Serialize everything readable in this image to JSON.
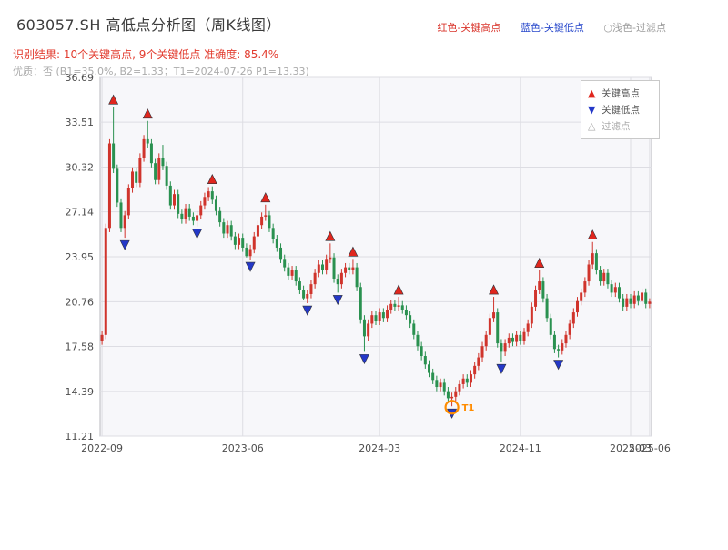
{
  "header": {
    "title": "603057.SH 高低点分析图（周K线图）",
    "legend_top": [
      {
        "label": "红色-关键高点",
        "color": "#d9342b"
      },
      {
        "label": "蓝色-关键低点",
        "color": "#2b4bcc"
      },
      {
        "label": "○浅色-过滤点",
        "color": "#9a9a9a"
      }
    ],
    "result_line": "识别结果: 10个关键高点, 9个关键低点   准确度: 85.4%",
    "quality_line": "优质：否 (B1=35.0%, B2=1.33；T1=2024-07-26 P1=13.33)"
  },
  "chart_data": {
    "type": "candlestick",
    "symbol": "603057.SH",
    "period": "weekly",
    "ylim": [
      11.21,
      36.69
    ],
    "y_ticks": [
      36.69,
      33.51,
      30.32,
      27.14,
      23.95,
      20.76,
      17.58,
      14.39,
      11.21
    ],
    "x_ticks": [
      {
        "index": 0,
        "label": "2022-09"
      },
      {
        "index": 37,
        "label": "2023-06"
      },
      {
        "index": 73,
        "label": "2024-03"
      },
      {
        "index": 110,
        "label": "2024-11"
      },
      {
        "index": 139,
        "label": "2025-03"
      },
      {
        "index": 144,
        "label": "2025-06"
      }
    ],
    "colors": {
      "up": "#d0342c",
      "down": "#2a9150",
      "key_high": "#e0261d",
      "key_low": "#2438c8",
      "t1": "#ff8c00",
      "grid": "#dddde3",
      "plot_bg": "#f7f7fa",
      "border": "#b9b9bf"
    },
    "legend": [
      {
        "label": "关键高点",
        "glyph": "▲",
        "color": "#e0261d"
      },
      {
        "label": "关键低点",
        "glyph": "▼",
        "color": "#2438c8"
      },
      {
        "label": "过滤点",
        "glyph": "△",
        "color": "#aaaaaa"
      }
    ],
    "key_highs": [
      {
        "i": 3,
        "v": 34.6
      },
      {
        "i": 12,
        "v": 33.6
      },
      {
        "i": 29,
        "v": 28.95
      },
      {
        "i": 43,
        "v": 27.65
      },
      {
        "i": 60,
        "v": 24.9
      },
      {
        "i": 66,
        "v": 23.8
      },
      {
        "i": 78,
        "v": 21.1
      },
      {
        "i": 103,
        "v": 21.1
      },
      {
        "i": 115,
        "v": 23.0
      },
      {
        "i": 129,
        "v": 25.0
      }
    ],
    "key_lows": [
      {
        "i": 6,
        "v": 25.3
      },
      {
        "i": 25,
        "v": 26.1
      },
      {
        "i": 39,
        "v": 23.75
      },
      {
        "i": 54,
        "v": 20.65
      },
      {
        "i": 62,
        "v": 21.4
      },
      {
        "i": 69,
        "v": 17.2
      },
      {
        "i": 92,
        "v": 13.33
      },
      {
        "i": 105,
        "v": 16.5
      },
      {
        "i": 120,
        "v": 16.8
      }
    ],
    "t1": {
      "i": 92,
      "v": 13.33,
      "label": "T1"
    },
    "candles": [
      [
        18.0,
        18.7,
        17.7,
        18.4
      ],
      [
        18.4,
        26.3,
        18.1,
        26.0
      ],
      [
        26.0,
        32.3,
        25.7,
        32.0
      ],
      [
        32.0,
        34.6,
        29.9,
        30.2
      ],
      [
        30.2,
        30.5,
        27.5,
        27.8
      ],
      [
        27.8,
        28.1,
        25.7,
        26.0
      ],
      [
        26.0,
        27.2,
        25.3,
        26.9
      ],
      [
        26.9,
        29.1,
        26.6,
        28.8
      ],
      [
        28.8,
        30.3,
        28.5,
        30.0
      ],
      [
        30.0,
        30.3,
        28.9,
        29.2
      ],
      [
        29.2,
        31.3,
        28.9,
        31.0
      ],
      [
        31.0,
        32.6,
        30.7,
        32.3
      ],
      [
        32.3,
        33.6,
        31.7,
        32.0
      ],
      [
        32.0,
        32.3,
        30.3,
        30.6
      ],
      [
        30.6,
        30.9,
        29.1,
        29.4
      ],
      [
        29.4,
        31.3,
        29.1,
        31.0
      ],
      [
        31.0,
        31.9,
        30.1,
        30.4
      ],
      [
        30.4,
        30.7,
        28.7,
        29.0
      ],
      [
        29.0,
        29.3,
        27.3,
        27.6
      ],
      [
        27.6,
        28.7,
        27.3,
        28.4
      ],
      [
        28.4,
        28.7,
        26.7,
        27.0
      ],
      [
        27.0,
        27.3,
        26.3,
        26.6
      ],
      [
        26.6,
        27.7,
        26.3,
        27.4
      ],
      [
        27.4,
        27.7,
        26.5,
        26.8
      ],
      [
        26.8,
        27.1,
        26.2,
        26.5
      ],
      [
        26.5,
        27.2,
        26.1,
        26.9
      ],
      [
        26.9,
        27.9,
        26.6,
        27.6
      ],
      [
        27.6,
        28.5,
        27.3,
        28.2
      ],
      [
        28.2,
        28.9,
        27.9,
        28.6
      ],
      [
        28.6,
        28.95,
        27.7,
        28.0
      ],
      [
        28.0,
        28.3,
        26.9,
        27.2
      ],
      [
        27.2,
        27.5,
        26.1,
        26.4
      ],
      [
        26.4,
        26.7,
        25.3,
        25.6
      ],
      [
        25.6,
        26.5,
        25.3,
        26.2
      ],
      [
        26.2,
        26.5,
        25.1,
        25.4
      ],
      [
        25.4,
        25.7,
        24.5,
        24.8
      ],
      [
        24.8,
        25.6,
        24.5,
        25.3
      ],
      [
        25.3,
        25.6,
        24.3,
        24.6
      ],
      [
        24.6,
        24.9,
        23.9,
        24.0
      ],
      [
        24.0,
        24.8,
        23.75,
        24.5
      ],
      [
        24.5,
        25.7,
        24.2,
        25.4
      ],
      [
        25.4,
        26.5,
        25.1,
        26.2
      ],
      [
        26.2,
        27.1,
        25.9,
        26.8
      ],
      [
        26.8,
        27.65,
        26.5,
        26.9
      ],
      [
        26.9,
        27.2,
        25.7,
        26.0
      ],
      [
        26.0,
        26.3,
        24.9,
        25.2
      ],
      [
        25.2,
        25.5,
        24.3,
        24.6
      ],
      [
        24.6,
        24.9,
        23.5,
        23.8
      ],
      [
        23.8,
        24.1,
        22.9,
        23.2
      ],
      [
        23.2,
        23.5,
        22.3,
        22.6
      ],
      [
        22.6,
        23.3,
        22.3,
        23.0
      ],
      [
        23.0,
        23.3,
        21.9,
        22.2
      ],
      [
        22.2,
        22.5,
        21.3,
        21.6
      ],
      [
        21.6,
        21.9,
        20.9,
        21.0
      ],
      [
        21.0,
        21.6,
        20.65,
        21.3
      ],
      [
        21.3,
        22.3,
        21.0,
        22.0
      ],
      [
        22.0,
        23.1,
        21.7,
        22.8
      ],
      [
        22.8,
        23.7,
        22.5,
        23.4
      ],
      [
        23.4,
        23.7,
        22.7,
        23.0
      ],
      [
        23.0,
        24.1,
        22.7,
        23.8
      ],
      [
        23.8,
        24.9,
        23.5,
        23.9
      ],
      [
        23.9,
        24.2,
        22.1,
        22.4
      ],
      [
        22.4,
        22.7,
        21.4,
        22.0
      ],
      [
        22.0,
        23.1,
        21.7,
        22.8
      ],
      [
        22.8,
        23.5,
        22.5,
        23.2
      ],
      [
        23.2,
        23.5,
        22.7,
        23.0
      ],
      [
        23.0,
        23.8,
        22.7,
        23.2
      ],
      [
        23.2,
        23.5,
        21.5,
        21.8
      ],
      [
        21.8,
        22.1,
        19.2,
        19.5
      ],
      [
        19.5,
        19.8,
        17.2,
        18.3
      ],
      [
        18.3,
        19.5,
        18.0,
        19.2
      ],
      [
        19.2,
        20.1,
        18.9,
        19.8
      ],
      [
        19.8,
        20.1,
        19.1,
        19.4
      ],
      [
        19.4,
        20.3,
        19.1,
        20.0
      ],
      [
        20.0,
        20.3,
        19.3,
        19.6
      ],
      [
        19.6,
        20.5,
        19.3,
        20.2
      ],
      [
        20.2,
        20.9,
        19.9,
        20.6
      ],
      [
        20.6,
        20.9,
        20.1,
        20.4
      ],
      [
        20.4,
        21.1,
        20.1,
        20.5
      ],
      [
        20.5,
        20.8,
        19.9,
        20.2
      ],
      [
        20.2,
        20.5,
        19.5,
        19.8
      ],
      [
        19.8,
        20.1,
        18.9,
        19.2
      ],
      [
        19.2,
        19.5,
        18.1,
        18.4
      ],
      [
        18.4,
        18.7,
        17.3,
        17.6
      ],
      [
        17.6,
        17.9,
        16.6,
        16.9
      ],
      [
        16.9,
        17.2,
        16.0,
        16.3
      ],
      [
        16.3,
        16.6,
        15.4,
        15.7
      ],
      [
        15.7,
        16.0,
        14.9,
        15.2
      ],
      [
        15.2,
        15.5,
        14.4,
        14.7
      ],
      [
        14.7,
        15.3,
        14.4,
        15.0
      ],
      [
        15.0,
        15.3,
        14.1,
        14.4
      ],
      [
        14.4,
        14.7,
        13.6,
        13.9
      ],
      [
        13.9,
        14.3,
        13.33,
        14.0
      ],
      [
        14.0,
        14.7,
        13.7,
        14.4
      ],
      [
        14.4,
        15.2,
        14.1,
        14.9
      ],
      [
        14.9,
        15.6,
        14.6,
        15.3
      ],
      [
        15.3,
        15.6,
        14.7,
        15.0
      ],
      [
        15.0,
        15.9,
        14.7,
        15.6
      ],
      [
        15.6,
        16.5,
        15.3,
        16.2
      ],
      [
        16.2,
        17.1,
        15.9,
        16.8
      ],
      [
        16.8,
        17.9,
        16.5,
        17.6
      ],
      [
        17.6,
        18.7,
        17.3,
        18.4
      ],
      [
        18.4,
        19.9,
        18.1,
        19.6
      ],
      [
        19.6,
        21.1,
        19.3,
        20.0
      ],
      [
        20.0,
        20.3,
        17.5,
        17.8
      ],
      [
        17.8,
        18.1,
        16.5,
        17.2
      ],
      [
        17.2,
        18.1,
        16.9,
        17.8
      ],
      [
        17.8,
        18.5,
        17.5,
        18.2
      ],
      [
        18.2,
        18.5,
        17.6,
        17.9
      ],
      [
        17.9,
        18.7,
        17.6,
        18.4
      ],
      [
        18.4,
        18.7,
        17.7,
        18.0
      ],
      [
        18.0,
        18.9,
        17.7,
        18.6
      ],
      [
        18.6,
        19.5,
        18.3,
        19.2
      ],
      [
        19.2,
        20.7,
        18.9,
        20.4
      ],
      [
        20.4,
        21.9,
        20.1,
        21.6
      ],
      [
        21.6,
        23.0,
        21.3,
        22.2
      ],
      [
        22.2,
        22.5,
        20.7,
        21.0
      ],
      [
        21.0,
        21.3,
        19.3,
        19.6
      ],
      [
        19.6,
        19.9,
        18.1,
        18.4
      ],
      [
        18.4,
        18.7,
        17.1,
        17.4
      ],
      [
        17.4,
        17.7,
        16.8,
        17.3
      ],
      [
        17.3,
        18.1,
        17.0,
        17.8
      ],
      [
        17.8,
        18.7,
        17.5,
        18.4
      ],
      [
        18.4,
        19.5,
        18.1,
        19.2
      ],
      [
        19.2,
        20.3,
        18.9,
        20.0
      ],
      [
        20.0,
        21.1,
        19.7,
        20.8
      ],
      [
        20.8,
        21.7,
        20.5,
        21.4
      ],
      [
        21.4,
        22.5,
        21.1,
        22.2
      ],
      [
        22.2,
        23.7,
        21.9,
        23.4
      ],
      [
        23.4,
        25.0,
        23.1,
        24.2
      ],
      [
        24.2,
        24.5,
        22.7,
        23.0
      ],
      [
        23.0,
        23.3,
        21.9,
        22.2
      ],
      [
        22.2,
        23.1,
        21.9,
        22.8
      ],
      [
        22.8,
        23.1,
        21.7,
        22.0
      ],
      [
        22.0,
        22.3,
        21.1,
        21.4
      ],
      [
        21.4,
        22.1,
        21.1,
        21.8
      ],
      [
        21.8,
        22.1,
        20.7,
        21.0
      ],
      [
        21.0,
        21.3,
        20.1,
        20.4
      ],
      [
        20.4,
        21.3,
        20.1,
        21.0
      ],
      [
        21.0,
        21.3,
        20.3,
        20.6
      ],
      [
        20.6,
        21.5,
        20.3,
        21.2
      ],
      [
        21.2,
        21.5,
        20.5,
        20.8
      ],
      [
        20.8,
        21.7,
        20.5,
        21.4
      ],
      [
        21.4,
        21.7,
        20.3,
        20.6
      ],
      [
        20.6,
        21.0,
        20.3,
        20.76
      ]
    ]
  }
}
